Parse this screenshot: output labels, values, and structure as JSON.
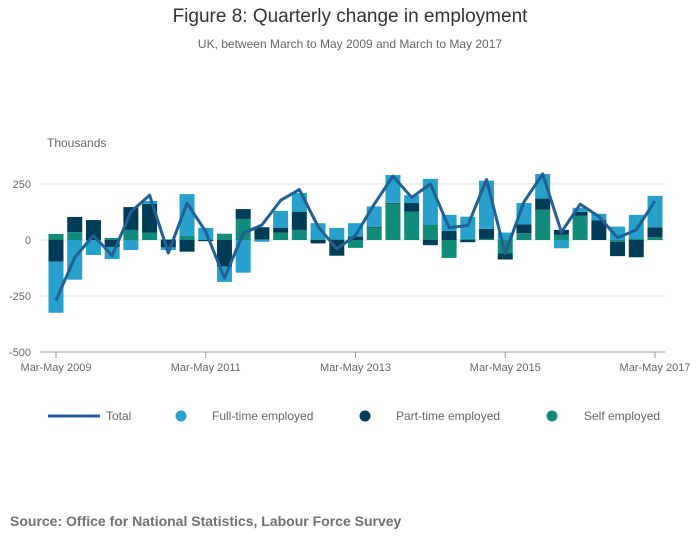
{
  "title": "Figure 8: Quarterly change in employment",
  "subtitle": "UK, between March to May 2009 and March to May 2017",
  "source": "Source: Office for National Statistics, Labour Force Survey",
  "colors": {
    "total": "#206095",
    "full": "#27a0cc",
    "part": "#003c57",
    "self": "#118c7b"
  },
  "chart_data": {
    "type": "bar",
    "stacked": true,
    "ylabel": "Thousands",
    "ylim": [
      -500,
      300
    ],
    "yticks": [
      250,
      0,
      -250,
      -500
    ],
    "xtick_labels": [
      "Mar-May 2009",
      "Mar-May 2011",
      "Mar-May 2013",
      "Mar-May 2015",
      "Mar-May 2017"
    ],
    "xtick_every": 8,
    "grid": true,
    "legend": "bottom",
    "quarters": 33,
    "series": [
      {
        "name": "Full-time employed",
        "type": "bar",
        "values": [
          -228,
          -177,
          -67,
          -54,
          -45,
          13,
          -12,
          187,
          54,
          -68,
          -146,
          -8,
          75,
          85,
          72,
          50,
          60,
          92,
          124,
          35,
          206,
          72,
          99,
          215,
          33,
          95,
          110,
          -37,
          18,
          30,
          60,
          105,
          140
        ]
      },
      {
        "name": "Part-time employed",
        "type": "bar",
        "values": [
          -97,
          68,
          89,
          -31,
          102,
          128,
          -33,
          -52,
          -5,
          -119,
          44,
          54,
          22,
          80,
          -15,
          -70,
          15,
          3,
          4,
          38,
          -23,
          40,
          -10,
          45,
          -27,
          40,
          50,
          22,
          18,
          87,
          -64,
          -77,
          45
        ]
      },
      {
        "name": "Self employed",
        "type": "bar",
        "values": [
          27,
          35,
          0,
          9,
          45,
          33,
          3,
          18,
          0,
          28,
          94,
          3,
          33,
          45,
          3,
          4,
          -35,
          55,
          162,
          127,
          67,
          -80,
          5,
          5,
          -60,
          30,
          135,
          23,
          108,
          0,
          -8,
          7,
          12
        ]
      },
      {
        "name": "Total",
        "type": "line",
        "values": [
          -270,
          -78,
          20,
          -70,
          126,
          200,
          -58,
          165,
          37,
          -170,
          30,
          67,
          177,
          225,
          60,
          -40,
          20,
          160,
          285,
          190,
          250,
          55,
          65,
          270,
          -60,
          170,
          295,
          35,
          160,
          105,
          10,
          45,
          175
        ]
      }
    ]
  }
}
